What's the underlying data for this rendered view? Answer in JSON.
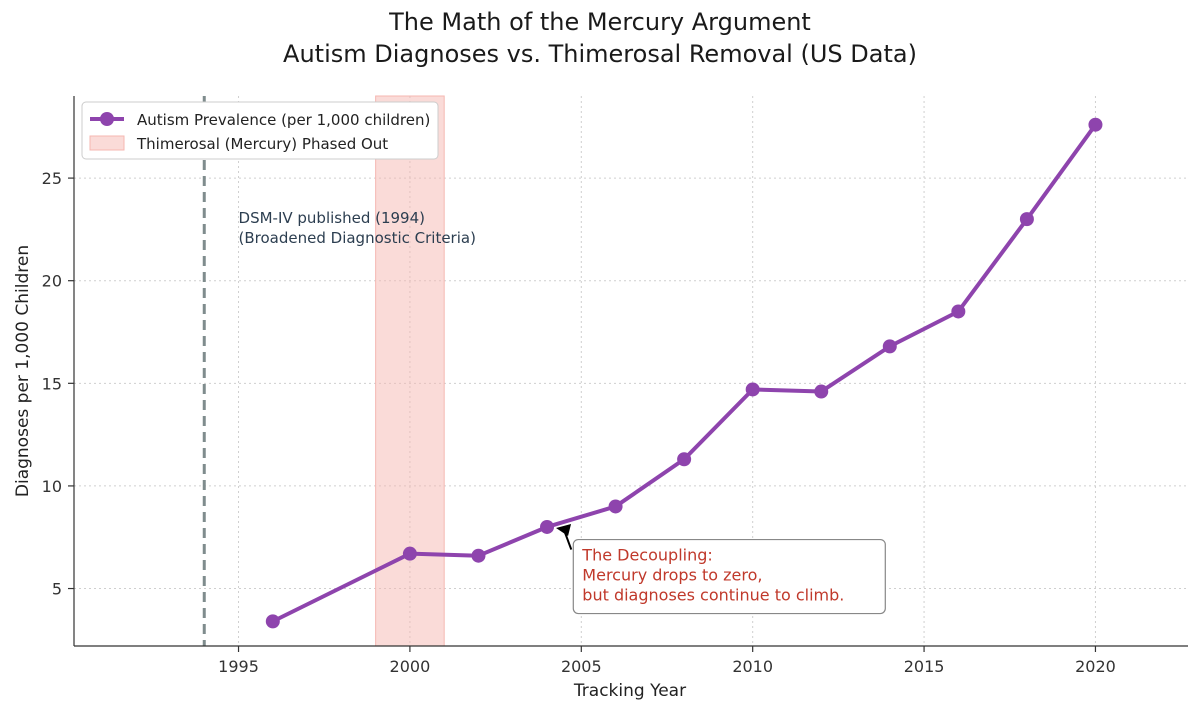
{
  "chart_data": {
    "type": "line",
    "title_lines": [
      "The Math of the Mercury Argument",
      "Autism Diagnoses vs. Thimerosal Removal (US Data)"
    ],
    "xlabel": "Tracking Year",
    "ylabel": "Diagnoses per 1,000 Children",
    "xlim": [
      1990.2,
      2022.7
    ],
    "ylim": [
      2.2,
      29.0
    ],
    "x_ticks": [
      1995,
      2000,
      2005,
      2010,
      2015,
      2020
    ],
    "y_ticks": [
      5,
      10,
      15,
      20,
      25
    ],
    "grid": true,
    "grid_style": "dotted",
    "legend_position": "top-left",
    "series": [
      {
        "name": "Autism Prevalence (per 1,000 children)",
        "color": "#8e44ad",
        "marker": "circle",
        "x": [
          1996,
          2000,
          2002,
          2004,
          2006,
          2008,
          2010,
          2012,
          2014,
          2016,
          2018,
          2020
        ],
        "y": [
          3.4,
          6.7,
          6.6,
          8.0,
          9.0,
          11.3,
          14.7,
          14.6,
          16.8,
          18.5,
          23.0,
          27.6
        ]
      }
    ],
    "shaded_region": {
      "label": "Thimerosal (Mercury) Phased Out",
      "x_start": 1999,
      "x_end": 2001,
      "color": "#f5b7b1"
    },
    "vertical_line": {
      "x": 1994,
      "color": "#7f8c8d",
      "style": "dashed"
    },
    "annotations": [
      {
        "id": "dsm",
        "lines": [
          "DSM-IV published (1994)",
          "(Broadened Diagnostic Criteria)"
        ],
        "x": 1995,
        "y": 23.3,
        "color": "#2c3e50"
      },
      {
        "id": "decoupling",
        "lines": [
          "The Decoupling:",
          "Mercury drops to zero,",
          "but diagnoses continue to climb."
        ],
        "x": 2005,
        "y": 6.9,
        "color": "#c0392b",
        "arrow_to": [
          2004,
          8.0
        ]
      }
    ]
  }
}
